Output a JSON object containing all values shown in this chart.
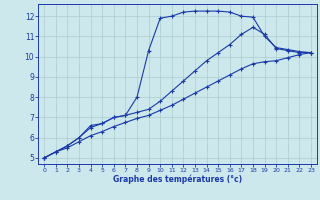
{
  "xlabel": "Graphe des températures (°c)",
  "xlim": [
    -0.5,
    23.5
  ],
  "ylim": [
    4.7,
    12.6
  ],
  "yticks": [
    5,
    6,
    7,
    8,
    9,
    10,
    11,
    12
  ],
  "xticks": [
    0,
    1,
    2,
    3,
    4,
    5,
    6,
    7,
    8,
    9,
    10,
    11,
    12,
    13,
    14,
    15,
    16,
    17,
    18,
    19,
    20,
    21,
    22,
    23
  ],
  "bg_color": "#cce8ec",
  "grid_color": "#aacccc",
  "line_color": "#1a3aaa",
  "line1_x": [
    0,
    1,
    2,
    3,
    4,
    5,
    6,
    7,
    8,
    9,
    10,
    11,
    12,
    13,
    14,
    15,
    16,
    17,
    18,
    19,
    20,
    21,
    22,
    23
  ],
  "line1_y": [
    5.0,
    5.3,
    5.6,
    6.0,
    6.5,
    6.7,
    7.0,
    7.1,
    8.0,
    10.3,
    11.9,
    12.0,
    12.2,
    12.25,
    12.25,
    12.25,
    12.2,
    12.0,
    11.95,
    11.0,
    10.45,
    10.35,
    10.25,
    10.2
  ],
  "line2_x": [
    0,
    1,
    2,
    3,
    4,
    5,
    6,
    7,
    8,
    9,
    10,
    11,
    12,
    13,
    14,
    15,
    16,
    17,
    18,
    19,
    20,
    21,
    22,
    23
  ],
  "line2_y": [
    5.0,
    5.3,
    5.6,
    6.0,
    6.6,
    6.7,
    7.0,
    7.1,
    7.25,
    7.4,
    7.8,
    8.3,
    8.8,
    9.3,
    9.8,
    10.2,
    10.6,
    11.1,
    11.45,
    11.1,
    10.4,
    10.3,
    10.2,
    10.2
  ],
  "line3_x": [
    0,
    1,
    2,
    3,
    4,
    5,
    6,
    7,
    8,
    9,
    10,
    11,
    12,
    13,
    14,
    15,
    16,
    17,
    18,
    19,
    20,
    21,
    22,
    23
  ],
  "line3_y": [
    5.0,
    5.3,
    5.5,
    5.8,
    6.1,
    6.3,
    6.55,
    6.75,
    6.95,
    7.1,
    7.35,
    7.6,
    7.9,
    8.2,
    8.5,
    8.8,
    9.1,
    9.4,
    9.65,
    9.75,
    9.8,
    9.95,
    10.1,
    10.2
  ]
}
